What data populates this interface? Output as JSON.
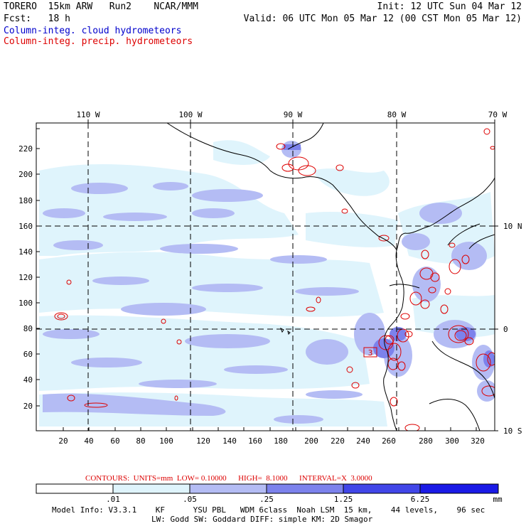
{
  "header": {
    "model": "TORERO  15km ARW   Run2    NCAR/MMM",
    "init": "Init: 12 UTC Sun 04 Mar 12",
    "fcst": "Fcst:   18 h",
    "valid": "Valid: 06 UTC Mon 05 Mar 12 (00 CST Mon 05 Mar 12)",
    "legend_cloud": "Column-integ. cloud hydrometeors",
    "legend_precip": "Column-integ. precip. hydrometeors",
    "cloud_color": "#0000cc",
    "precip_color": "#dd0000"
  },
  "map": {
    "lon_labels": [
      "110 W",
      "100 W",
      "90 W",
      "80 W",
      "70 W"
    ],
    "lat_labels": [
      "10 N",
      "0",
      "10 S"
    ],
    "y_ticks": [
      "20",
      "40",
      "60",
      "80",
      "100",
      "120",
      "140",
      "160",
      "180",
      "200",
      "220"
    ],
    "x_ticks": [
      "20",
      "40",
      "60",
      "80",
      "100",
      "120",
      "140",
      "160",
      "180",
      "200",
      "220",
      "240",
      "260",
      "280",
      "300",
      "320"
    ],
    "box_label": "3"
  },
  "colorbar": {
    "contours_info": "CONTOURS:  UNITS=mm  LOW= 0.10000      HIGH=  8.1000      INTERVAL=X  3.0000",
    "thresholds": [
      ".01",
      ".05",
      ".25",
      "1.25",
      "6.25"
    ],
    "unit": "mm",
    "colors": [
      "#ffffff",
      "#dff4fc",
      "#b4bcf4",
      "#7c82ec",
      "#4146e8",
      "#1a1ae6"
    ]
  },
  "footer": {
    "line1": "Model Info: V3.3.1    KF      YSU PBL   WDM 6class  Noah LSM  15 km,    44 levels,    96 sec",
    "line2": "LW: Godd SW: Goddard DIFF: simple KM: 2D Smagor"
  }
}
